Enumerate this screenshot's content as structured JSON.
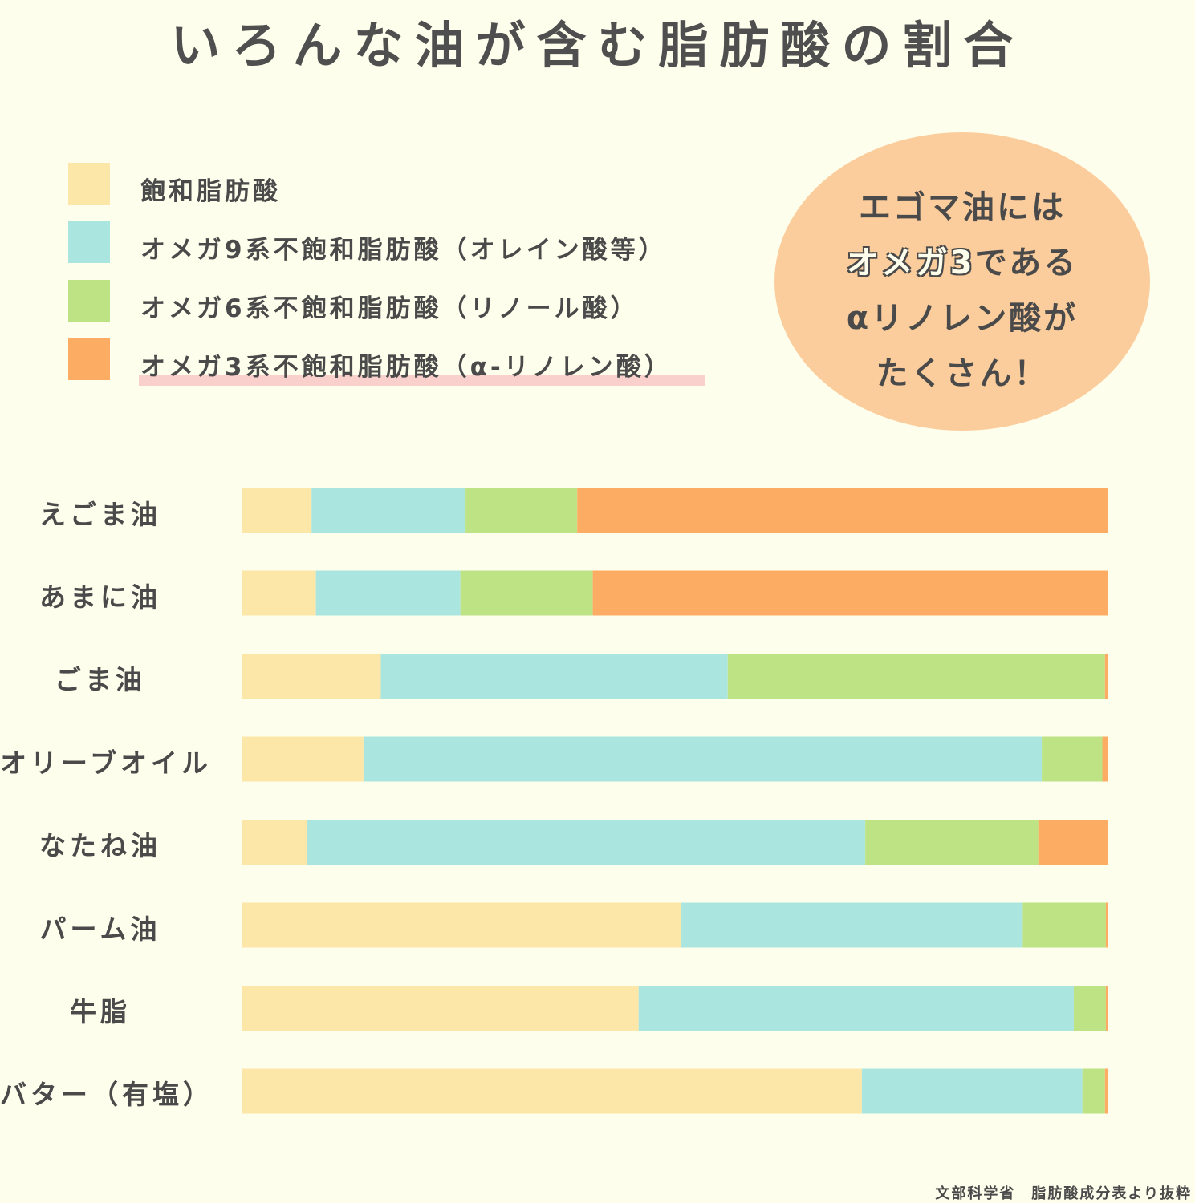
{
  "colors": {
    "background": "#fefeec",
    "saturated": "#fde7a8",
    "omega9": "#abe5e0",
    "omega6": "#bde385",
    "omega3": "#fdad63",
    "bubble": "#fbcd9c",
    "underline": "#f9c8c8"
  },
  "chart_data": {
    "type": "bar",
    "orientation": "horizontal",
    "stacked": true,
    "normalized": true,
    "title": "いろんな油が含む脂肪酸の割合",
    "source": "文部科学省　脂肪酸成分表より抜粋",
    "xlim": [
      0,
      100
    ],
    "categories": [
      "えごま油",
      "あまに油",
      "ごま油",
      "オリーブオイル",
      "なたね油",
      "パーム油",
      "牛脂",
      "バター（有塩）"
    ],
    "series": [
      {
        "name": "飽和脂肪酸",
        "color": "#fde7a8",
        "values": [
          8.0,
          8.5,
          16.0,
          14.0,
          7.5,
          50.7,
          45.8,
          71.6
        ]
      },
      {
        "name": "オメガ9系不飽和脂肪酸（オレイン酸等）",
        "color": "#abe5e0",
        "values": [
          17.8,
          16.7,
          40.1,
          78.4,
          64.5,
          39.5,
          50.3,
          25.5
        ]
      },
      {
        "name": "オメガ6系不飽和脂肪酸（リノール酸）",
        "color": "#bde385",
        "values": [
          12.9,
          15.3,
          43.6,
          7.0,
          20.0,
          9.6,
          3.7,
          2.6
        ]
      },
      {
        "name": "オメガ3系不飽和脂肪酸（α-リノレン酸）",
        "color": "#fdad63",
        "values": [
          61.3,
          59.5,
          0.3,
          0.6,
          8.0,
          0.2,
          0.2,
          0.3
        ]
      }
    ]
  },
  "legend": {
    "items": [
      {
        "label": "飽和脂肪酸"
      },
      {
        "label": "オメガ9系不飽和脂肪酸（オレイン酸等）"
      },
      {
        "label": "オメガ6系不飽和脂肪酸（リノール酸）"
      },
      {
        "label": "オメガ3系不飽和脂肪酸（α-リノレン酸）"
      }
    ]
  },
  "callout": {
    "line1": "エゴマ油には",
    "line2_highlight": "オメガ3",
    "line2_rest": "である",
    "line3": "αリノレン酸が",
    "line4": "たくさん！"
  }
}
